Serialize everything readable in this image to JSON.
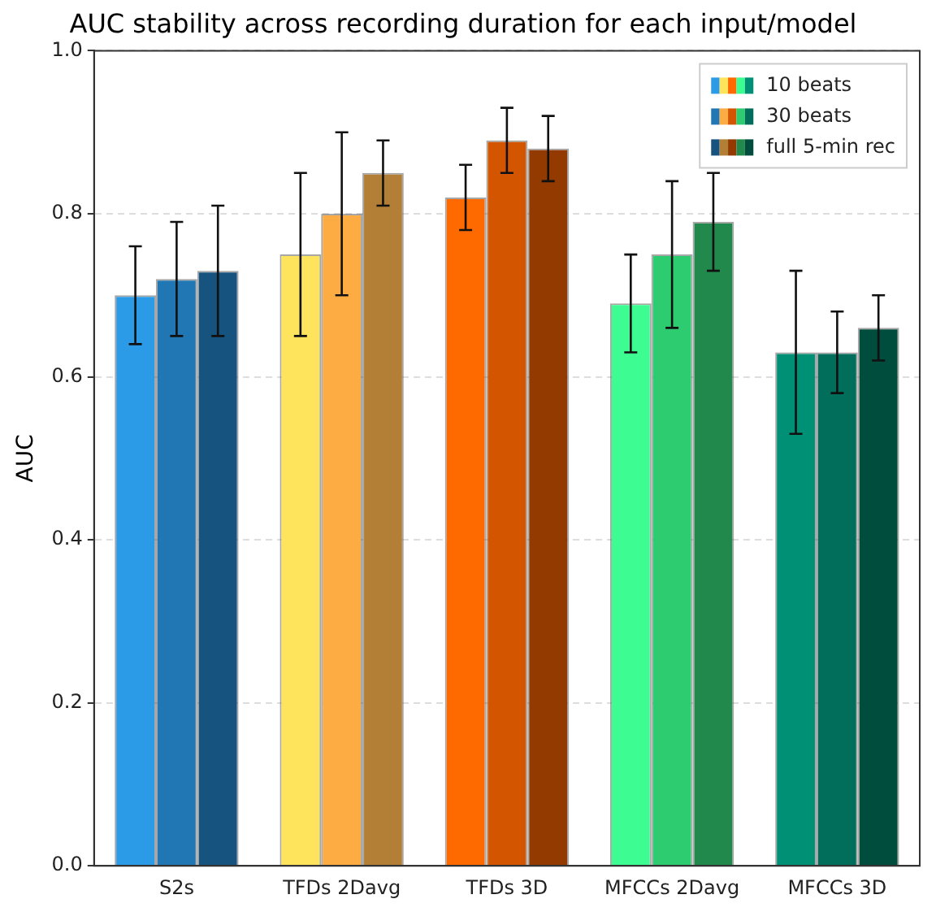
{
  "chart_data": {
    "type": "bar",
    "title": "AUC stability across recording duration for each input/model",
    "ylabel": "AUC",
    "categories": [
      "S2s",
      "TFDs 2Davg",
      "TFDs 3D",
      "MFCCs 2Davg",
      "MFCCs 3D"
    ],
    "series": [
      {
        "name": "10 beats",
        "colors": [
          "#2b9be8",
          "#fde45c",
          "#ff6a00",
          "#3dfc92",
          "#009076"
        ],
        "values": [
          0.7,
          0.75,
          0.82,
          0.69,
          0.63
        ],
        "errors": [
          0.06,
          0.1,
          0.04,
          0.06,
          0.1
        ]
      },
      {
        "name": "30 beats",
        "colors": [
          "#2077b4",
          "#fdac44",
          "#d45500",
          "#2ecc71",
          "#006e5a"
        ],
        "values": [
          0.72,
          0.8,
          0.89,
          0.75,
          0.63
        ],
        "errors": [
          0.07,
          0.1,
          0.04,
          0.09,
          0.05
        ]
      },
      {
        "name": "full 5-min rec",
        "colors": [
          "#17537f",
          "#b37f36",
          "#923a00",
          "#21894c",
          "#004c3d"
        ],
        "values": [
          0.73,
          0.85,
          0.88,
          0.79,
          0.66
        ],
        "errors": [
          0.08,
          0.04,
          0.04,
          0.06,
          0.04
        ]
      }
    ],
    "ylim": [
      0,
      1
    ],
    "yticks": [
      {
        "value": 0,
        "label": "0.0"
      },
      0.2,
      0.4,
      0.6,
      0.8,
      {
        "value": 1,
        "label": "1.0"
      }
    ],
    "grid": "y",
    "legend": "top right"
  }
}
